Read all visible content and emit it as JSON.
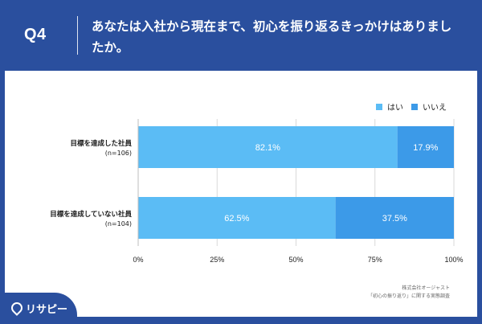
{
  "header": {
    "q_label": "Q4",
    "question": "あなたは入社から現在まで、初心を振り返るきっかけはありましたか。"
  },
  "legend": {
    "yes": "はい",
    "no": "いいえ"
  },
  "colors": {
    "header_bg": "#2a4f9e",
    "yes": "#5bbcf5",
    "no": "#3c9ae8"
  },
  "chart_data": {
    "type": "bar",
    "orientation": "horizontal-stacked-100",
    "categories": [
      {
        "label": "目標を達成した社員",
        "sub": "(n=106)"
      },
      {
        "label": "目標を達成していない社員",
        "sub": "(n=104)"
      }
    ],
    "series": [
      {
        "name": "はい",
        "values": [
          82.1,
          62.5
        ],
        "labels": [
          "82.1%",
          "62.5%"
        ]
      },
      {
        "name": "いいえ",
        "values": [
          17.9,
          37.5
        ],
        "labels": [
          "17.9%",
          "37.5%"
        ]
      }
    ],
    "xlim": [
      0,
      100
    ],
    "xticks": [
      "0%",
      "25%",
      "50%",
      "75%",
      "100%"
    ],
    "grid": true,
    "legend_position": "top-right"
  },
  "source": {
    "line1": "株式会社オージャスト",
    "line2": "「初心の振り返り」に関する実態調査"
  },
  "brand": {
    "name": "リサピー"
  }
}
